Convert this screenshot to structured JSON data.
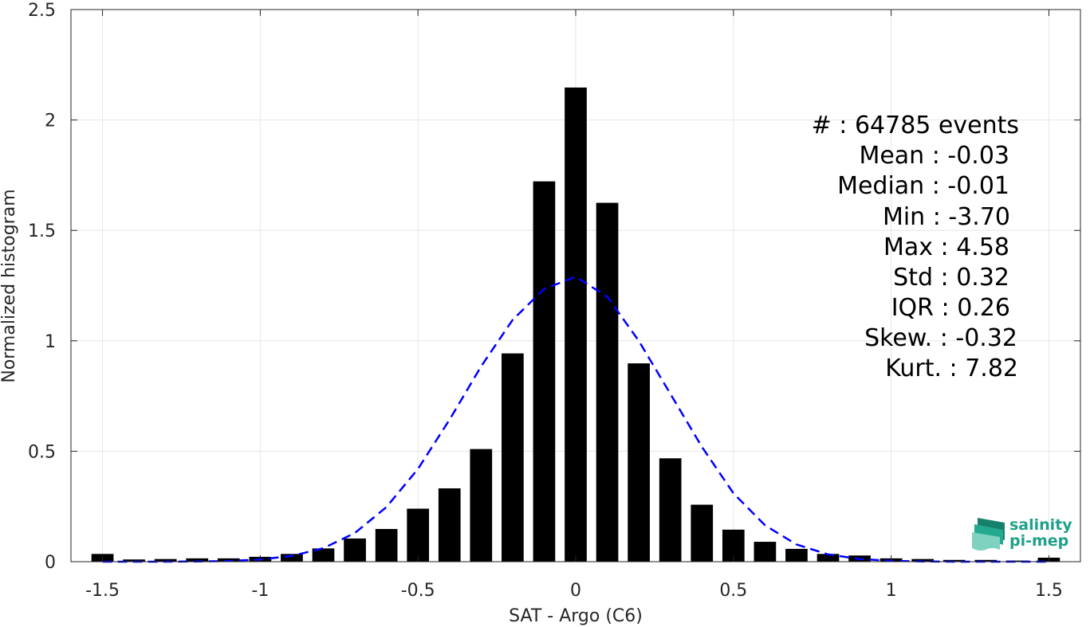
{
  "chart_data": {
    "type": "bar",
    "xlabel": "SAT - Argo (C6)",
    "ylabel": "Normalized histogram",
    "xlim": [
      -1.6,
      1.6
    ],
    "ylim": [
      0,
      2.5
    ],
    "grid": true,
    "xticks": [
      -1.5,
      -1,
      -0.5,
      0,
      0.5,
      1,
      1.5
    ],
    "xtick_labels": [
      "-1.5",
      "-1",
      "-0.5",
      "0",
      "0.5",
      "1",
      "1.5"
    ],
    "yticks": [
      0,
      0.5,
      1,
      1.5,
      2,
      2.5
    ],
    "ytick_labels": [
      "0",
      "0.5",
      "1",
      "1.5",
      "2",
      "2.5"
    ],
    "bar_width": 0.07,
    "bar_color": "#000000",
    "fit_color": "#0000ff",
    "series": [
      {
        "kind": "histogram",
        "x": [
          -1.5,
          -1.4,
          -1.3,
          -1.2,
          -1.1,
          -1.0,
          -0.9,
          -0.8,
          -0.7,
          -0.6,
          -0.5,
          -0.4,
          -0.3,
          -0.2,
          -0.1,
          0.0,
          0.1,
          0.2,
          0.3,
          0.4,
          0.5,
          0.6,
          0.7,
          0.8,
          0.9,
          1.0,
          1.1,
          1.2,
          1.3,
          1.4,
          1.5
        ],
        "values": [
          0.035,
          0.01,
          0.012,
          0.015,
          0.015,
          0.022,
          0.035,
          0.06,
          0.105,
          0.148,
          0.24,
          0.332,
          0.51,
          0.943,
          1.722,
          2.147,
          1.625,
          0.898,
          0.468,
          0.258,
          0.145,
          0.09,
          0.058,
          0.035,
          0.028,
          0.015,
          0.012,
          0.008,
          0.008,
          0.005,
          0.018
        ]
      },
      {
        "kind": "fit",
        "x": [
          -1.5,
          -1.4,
          -1.3,
          -1.2,
          -1.1,
          -1.0,
          -0.9,
          -0.8,
          -0.7,
          -0.6,
          -0.5,
          -0.4,
          -0.3,
          -0.2,
          -0.1,
          0.0,
          0.1,
          0.2,
          0.3,
          0.4,
          0.5,
          0.6,
          0.7,
          0.8,
          0.9,
          1.0,
          1.1,
          1.2,
          1.3,
          1.4,
          1.5
        ],
        "values": [
          0.0,
          0.0,
          0.0,
          0.001,
          0.003,
          0.01,
          0.026,
          0.061,
          0.13,
          0.247,
          0.42,
          0.643,
          0.884,
          1.095,
          1.235,
          1.29,
          1.2,
          1.0,
          0.76,
          0.52,
          0.31,
          0.165,
          0.078,
          0.033,
          0.012,
          0.004,
          0.001,
          0.0,
          0.0,
          0.0,
          0.0
        ]
      }
    ],
    "annotations": [
      "#  : 64785 events",
      "Mean : -0.03",
      "Median : -0.01",
      "Min : -3.70",
      "Max : 4.58",
      "Std : 0.32",
      "IQR : 0.26",
      "Skew. : -0.32",
      "Kurt. : 7.82"
    ]
  },
  "logo": {
    "line1": "salinity",
    "line2": "pi-mep"
  }
}
